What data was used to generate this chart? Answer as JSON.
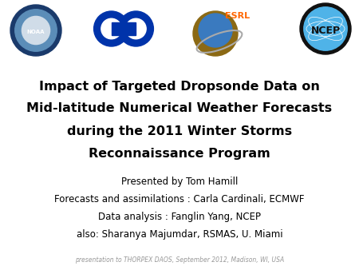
{
  "title_line1": "Impact of Targeted Dropsonde Data on",
  "title_line2": "Mid-latitude Numerical Weather Forecasts",
  "title_line3": "during the 2011 Winter Storms",
  "title_line4": "Reconnaissance Program",
  "subtitle1": "Presented by Tom Hamill",
  "subtitle2": "Forecasts and assimilations : Carla Cardinali, ECMWF",
  "subtitle3": "Data analysis : Fanglin Yang, NCEP",
  "subtitle4": "also: Sharanya Majumdar, RSMAS, U. Miami",
  "footer": "presentation to THORPEX DAOS, September 2012, Madison, WI, USA",
  "esrl_text": "ESRL",
  "ncep_text": "NCEP",
  "bg_color": "#ffffff",
  "title_color": "#000000",
  "subtitle_color": "#000000",
  "footer_color": "#999999",
  "esrl_color": "#ff6600",
  "title_fontsize": 11.5,
  "subtitle_fontsize": 8.5,
  "footer_fontsize": 5.5
}
